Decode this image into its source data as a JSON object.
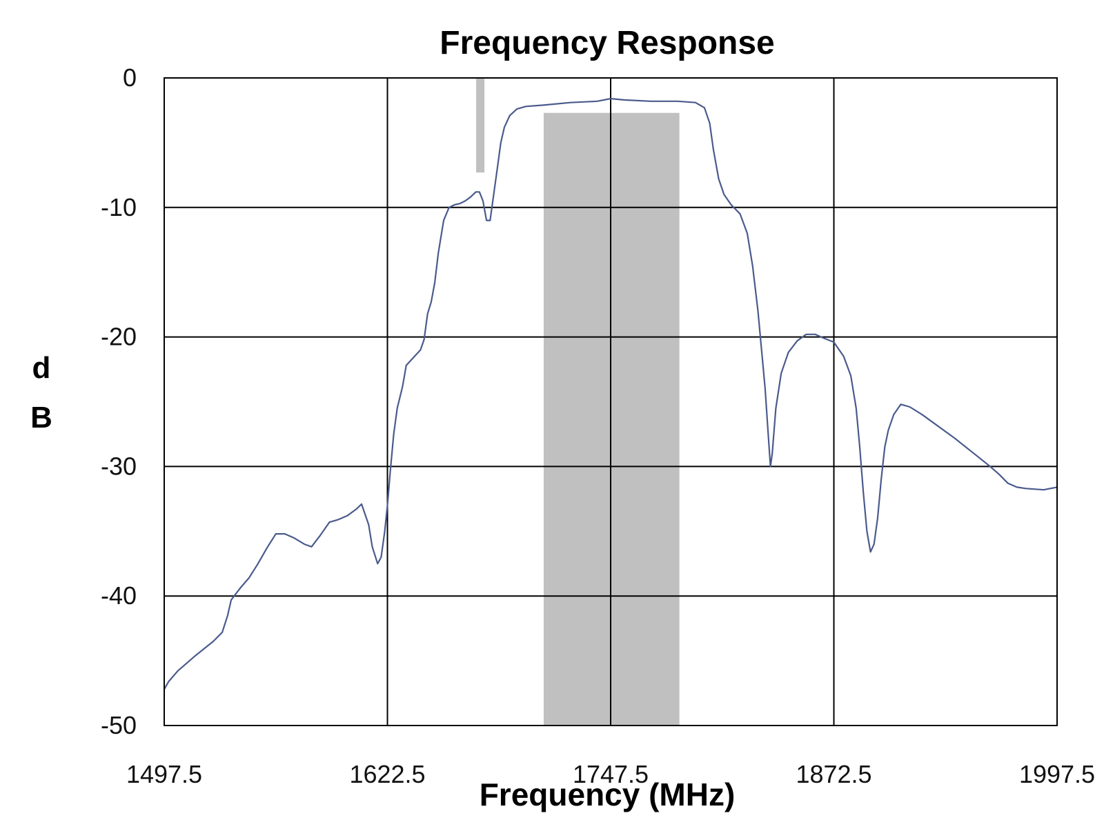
{
  "chart_data": {
    "type": "line",
    "title": "Frequency Response",
    "xlabel": "Frequency (MHz)",
    "ylabel_lines": [
      "d",
      "B"
    ],
    "xlim": [
      1497.5,
      1997.5
    ],
    "ylim": [
      -50,
      0
    ],
    "x_ticks": [
      1497.5,
      1622.5,
      1747.5,
      1872.5,
      1997.5
    ],
    "x_tick_labels": [
      "1497.5",
      "1622.5",
      "1747.5",
      "1872.5",
      "1997.5"
    ],
    "y_ticks": [
      0,
      -10,
      -20,
      -30,
      -40,
      -50
    ],
    "y_tick_labels": [
      "0",
      "-10",
      "-20",
      "-30",
      "-40",
      "-50"
    ],
    "grid": true,
    "legend": "none",
    "colors": {
      "line": "#4a5a8c",
      "band": "#c0c0c0",
      "grid": "#000000"
    },
    "highlight_band": {
      "x": [
        1710,
        1786
      ],
      "y": [
        -50,
        -2.7
      ]
    },
    "marker_bar": {
      "x": 1674.5,
      "y": [
        0,
        -7.3
      ]
    },
    "series": [
      {
        "points": [
          [
            1497.5,
            -47.2
          ],
          [
            1500,
            -46.6
          ],
          [
            1505,
            -45.8
          ],
          [
            1515,
            -44.6
          ],
          [
            1525,
            -43.5
          ],
          [
            1530,
            -42.8
          ],
          [
            1533,
            -41.5
          ],
          [
            1535,
            -40.3
          ],
          [
            1540,
            -39.4
          ],
          [
            1545,
            -38.6
          ],
          [
            1550,
            -37.5
          ],
          [
            1555,
            -36.3
          ],
          [
            1560,
            -35.2
          ],
          [
            1565,
            -35.2
          ],
          [
            1570,
            -35.5
          ],
          [
            1576,
            -36.0
          ],
          [
            1580,
            -36.2
          ],
          [
            1585,
            -35.3
          ],
          [
            1590,
            -34.3
          ],
          [
            1595,
            -34.1
          ],
          [
            1600,
            -33.8
          ],
          [
            1605,
            -33.3
          ],
          [
            1608,
            -32.9
          ],
          [
            1612,
            -34.5
          ],
          [
            1614,
            -36.2
          ],
          [
            1617,
            -37.5
          ],
          [
            1619,
            -37.0
          ],
          [
            1621,
            -35.0
          ],
          [
            1622.5,
            -33.0
          ],
          [
            1624,
            -30.5
          ],
          [
            1626,
            -27.5
          ],
          [
            1628,
            -25.5
          ],
          [
            1631,
            -23.8
          ],
          [
            1633,
            -22.2
          ],
          [
            1637,
            -21.6
          ],
          [
            1641,
            -21.0
          ],
          [
            1643,
            -20.2
          ],
          [
            1645,
            -18.2
          ],
          [
            1647,
            -17.3
          ],
          [
            1649,
            -15.8
          ],
          [
            1651,
            -13.5
          ],
          [
            1654,
            -11.0
          ],
          [
            1657,
            -10.0
          ],
          [
            1660,
            -9.8
          ],
          [
            1663,
            -9.7
          ],
          [
            1666,
            -9.5
          ],
          [
            1669,
            -9.2
          ],
          [
            1672,
            -8.8
          ],
          [
            1674,
            -8.8
          ],
          [
            1676,
            -9.5
          ],
          [
            1678,
            -11.0
          ],
          [
            1680,
            -11.0
          ],
          [
            1682,
            -9.0
          ],
          [
            1684,
            -7.0
          ],
          [
            1686,
            -5.0
          ],
          [
            1688,
            -3.8
          ],
          [
            1691,
            -2.9
          ],
          [
            1695,
            -2.4
          ],
          [
            1700,
            -2.2
          ],
          [
            1710,
            -2.1
          ],
          [
            1725,
            -1.9
          ],
          [
            1740,
            -1.8
          ],
          [
            1747.5,
            -1.6
          ],
          [
            1755,
            -1.7
          ],
          [
            1770,
            -1.8
          ],
          [
            1785,
            -1.8
          ],
          [
            1795,
            -1.9
          ],
          [
            1800,
            -2.3
          ],
          [
            1803,
            -3.5
          ],
          [
            1805,
            -5.5
          ],
          [
            1808,
            -7.8
          ],
          [
            1811,
            -9.0
          ],
          [
            1815,
            -9.8
          ],
          [
            1820,
            -10.5
          ],
          [
            1824,
            -12.0
          ],
          [
            1827,
            -14.5
          ],
          [
            1830,
            -18.0
          ],
          [
            1832,
            -21.0
          ],
          [
            1834,
            -24.0
          ],
          [
            1835.5,
            -27.0
          ],
          [
            1837,
            -30.0
          ],
          [
            1838,
            -29.0
          ],
          [
            1840,
            -25.5
          ],
          [
            1843,
            -22.8
          ],
          [
            1847,
            -21.2
          ],
          [
            1852,
            -20.3
          ],
          [
            1857,
            -19.8
          ],
          [
            1862,
            -19.8
          ],
          [
            1867,
            -20.1
          ],
          [
            1872.5,
            -20.4
          ],
          [
            1878,
            -21.5
          ],
          [
            1882,
            -23.0
          ],
          [
            1885,
            -25.5
          ],
          [
            1887,
            -28.5
          ],
          [
            1889,
            -32.0
          ],
          [
            1891,
            -35.0
          ],
          [
            1893,
            -36.6
          ],
          [
            1895,
            -36.0
          ],
          [
            1897,
            -34.0
          ],
          [
            1899,
            -31.0
          ],
          [
            1901,
            -28.5
          ],
          [
            1903,
            -27.2
          ],
          [
            1906,
            -26.0
          ],
          [
            1910,
            -25.2
          ],
          [
            1915,
            -25.4
          ],
          [
            1922,
            -26.0
          ],
          [
            1930,
            -26.8
          ],
          [
            1940,
            -27.8
          ],
          [
            1950,
            -28.9
          ],
          [
            1960,
            -30.0
          ],
          [
            1965,
            -30.6
          ],
          [
            1970,
            -31.3
          ],
          [
            1975,
            -31.6
          ],
          [
            1980,
            -31.7
          ],
          [
            1990,
            -31.8
          ],
          [
            1997.5,
            -31.6
          ]
        ]
      }
    ]
  }
}
